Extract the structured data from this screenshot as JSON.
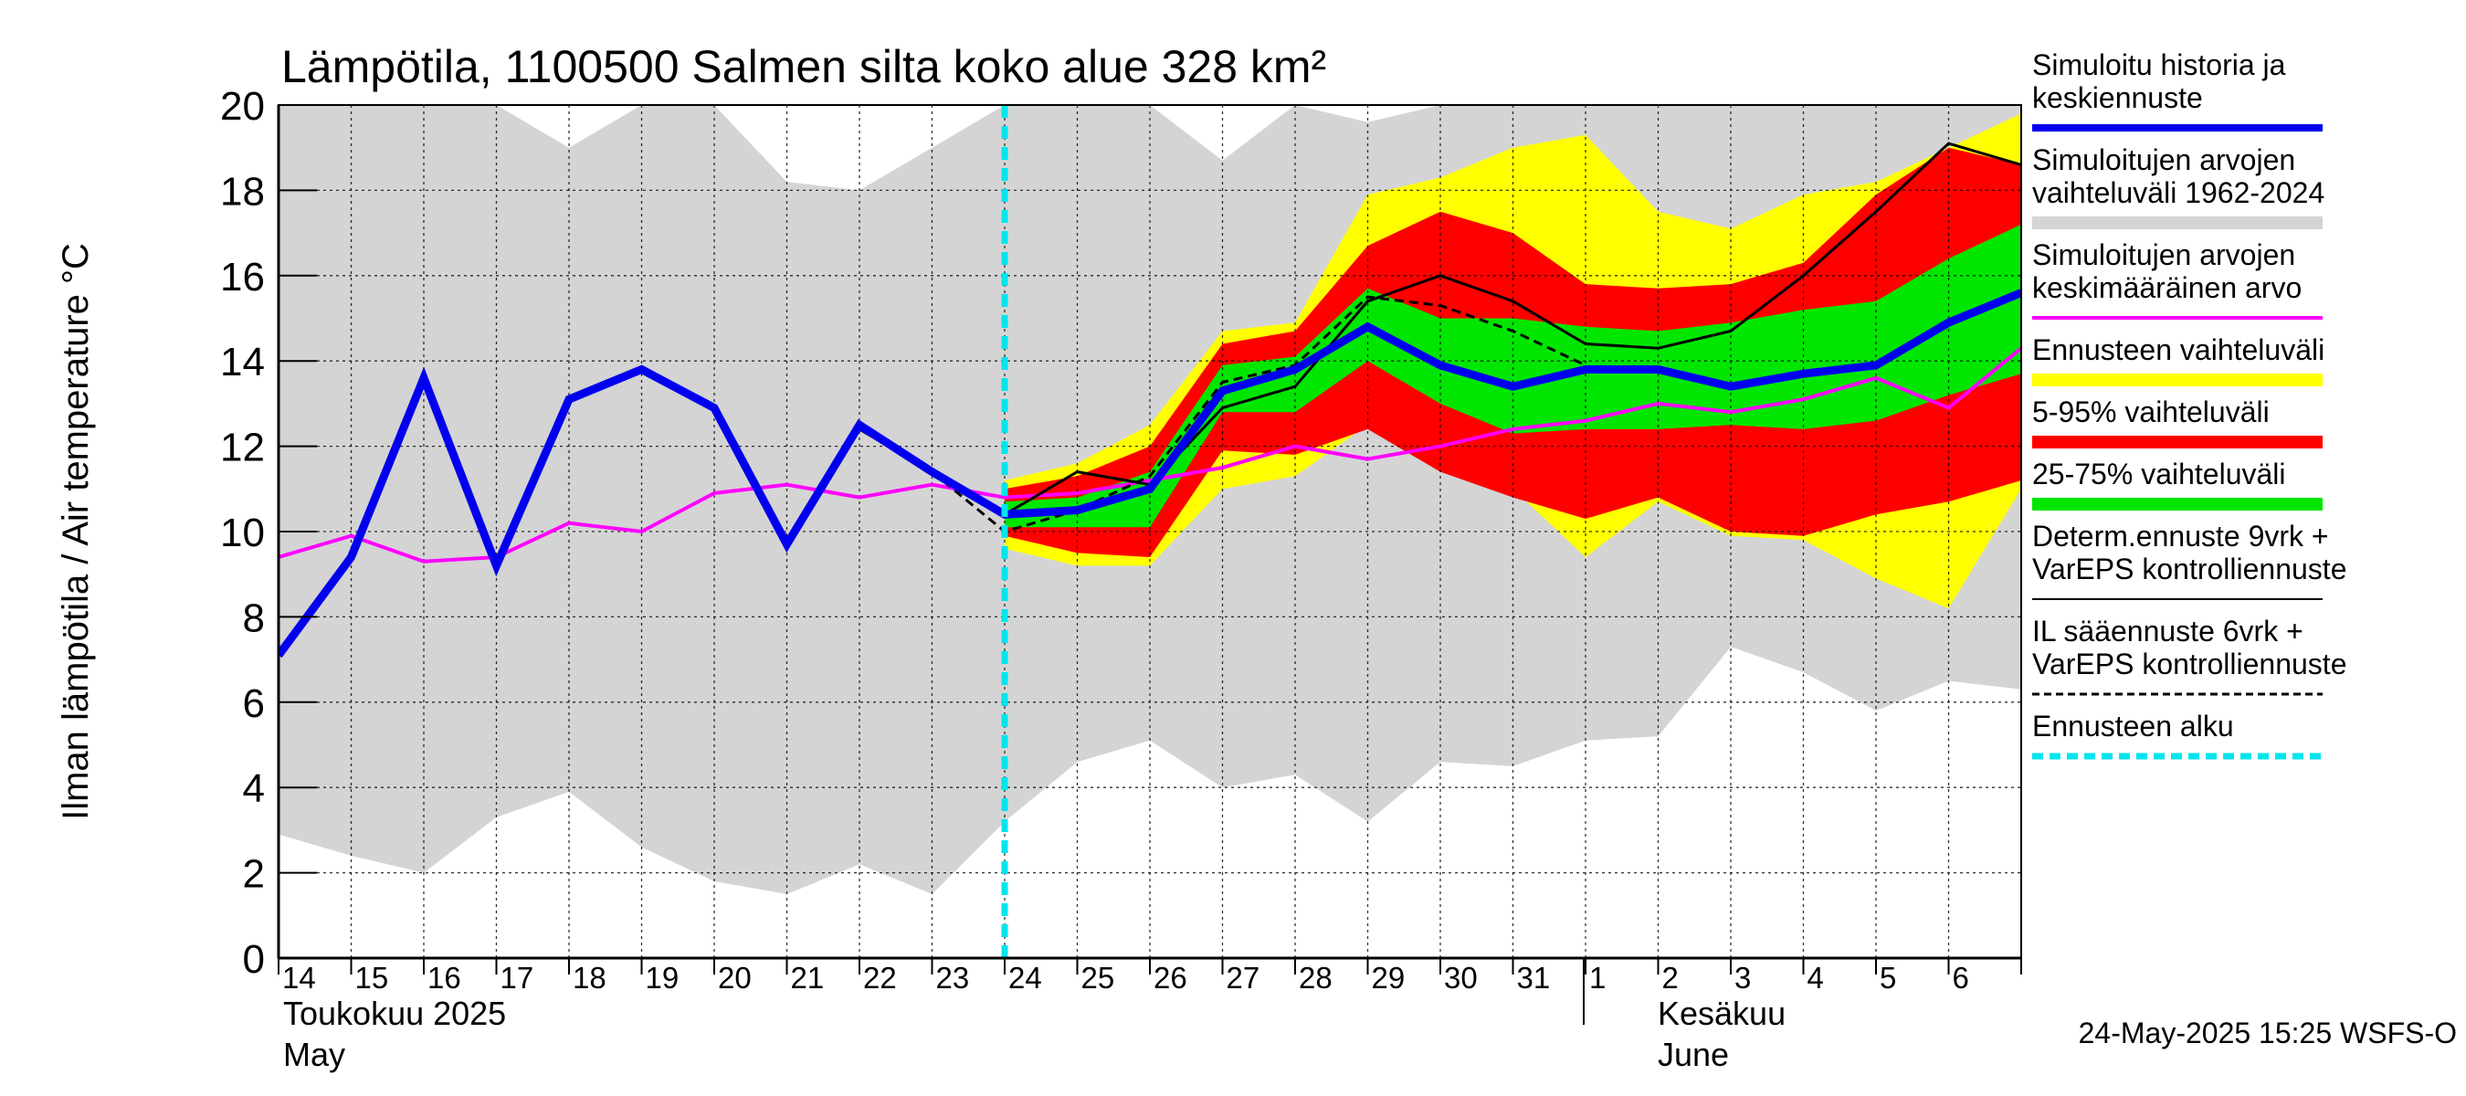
{
  "colors": {
    "history_band": "#d4d4d4",
    "forecast_range": "#ffff00",
    "p5_95": "#ff0000",
    "p25_75": "#00e600",
    "simulated": "#0000ee",
    "mean": "#ff00ff",
    "determ": "#000000",
    "il": "#000000",
    "forecast_start": "#00e5ee"
  },
  "chart_data": {
    "type": "line",
    "title": "Lämpötila, 1100500 Salmen silta koko alue 328 km²",
    "ylabel": "Ilman lämpötila / Air temperature   °C",
    "ylim": [
      0,
      20
    ],
    "yticks": [
      "0",
      "2",
      "4",
      "6",
      "8",
      "10",
      "12",
      "14",
      "16",
      "18",
      "20"
    ],
    "x_day_labels": [
      "14",
      "15",
      "16",
      "17",
      "18",
      "19",
      "20",
      "21",
      "22",
      "23",
      "24",
      "25",
      "26",
      "27",
      "28",
      "29",
      "30",
      "31",
      "1",
      "2",
      "3",
      "4",
      "5",
      "6"
    ],
    "month_labels": {
      "may_fi": "Toukokuu  2025",
      "may_en": "May",
      "june_fi": "Kesäkuu",
      "june_en": "June"
    },
    "forecast_start": "24.0",
    "timestamp": "24-May-2025 15:25 WSFS-O",
    "legend": [
      {
        "key": "simulated",
        "lines": [
          "Simuloitu historia ja",
          "keskiennuste"
        ]
      },
      {
        "key": "history_band",
        "lines": [
          "Simuloitujen arvojen",
          "vaihteluväli 1962-2024"
        ]
      },
      {
        "key": "mean",
        "lines": [
          "Simuloitujen arvojen",
          "keskimääräinen arvo"
        ]
      },
      {
        "key": "forecast_range",
        "lines": [
          "Ennusteen vaihteluväli"
        ]
      },
      {
        "key": "p5_95",
        "lines": [
          "5-95% vaihteluväli"
        ]
      },
      {
        "key": "p25_75",
        "lines": [
          "25-75% vaihteluväli"
        ]
      },
      {
        "key": "determ",
        "lines": [
          "Determ.ennuste 9vrk +",
          "VarEPS kontrolliennuste"
        ]
      },
      {
        "key": "il",
        "lines": [
          "IL sääennuste 6vrk  +",
          "  VarEPS kontrolliennuste"
        ]
      },
      {
        "key": "forecast_start",
        "lines": [
          "Ennusteen alku"
        ]
      }
    ],
    "history_band": {
      "x": [
        14,
        15,
        16,
        17,
        18,
        19,
        20,
        21,
        22,
        23,
        24,
        25,
        26,
        27,
        28,
        29,
        30,
        31,
        32,
        33,
        34,
        35,
        36,
        37,
        38.0
      ],
      "upper": [
        20,
        20,
        20,
        20,
        19,
        20,
        20,
        18.2,
        18,
        19,
        20,
        20,
        20,
        18.7,
        20,
        19.6,
        20,
        20,
        20,
        20,
        20,
        20,
        20,
        20,
        20
      ],
      "lower": [
        2.9,
        2.4,
        2.0,
        3.3,
        3.9,
        2.6,
        1.8,
        1.5,
        2.2,
        1.5,
        3.2,
        4.6,
        5.1,
        4.0,
        4.3,
        3.2,
        4.6,
        4.5,
        5.1,
        5.2,
        7.3,
        6.7,
        5.8,
        6.5,
        6.3
      ]
    },
    "forecast_range": {
      "x": [
        24,
        25,
        26,
        27,
        28,
        29,
        30,
        31,
        32,
        33,
        34,
        35,
        36,
        37,
        38.0
      ],
      "upper": [
        11.2,
        11.6,
        12.5,
        14.7,
        14.9,
        17.9,
        18.3,
        19.0,
        19.3,
        17.5,
        17.1,
        17.9,
        18.2,
        19.0,
        19.8
      ],
      "lower": [
        9.6,
        9.2,
        9.2,
        11.0,
        11.3,
        12.5,
        11.4,
        11.0,
        9.4,
        10.7,
        9.9,
        9.8,
        8.9,
        8.2,
        11.0
      ]
    },
    "p5_95": {
      "x": [
        24,
        25,
        26,
        27,
        28,
        29,
        30,
        31,
        32,
        33,
        34,
        35,
        36,
        37,
        38.0
      ],
      "upper": [
        11.0,
        11.3,
        12.0,
        14.4,
        14.7,
        16.7,
        17.5,
        17.0,
        15.8,
        15.7,
        15.8,
        16.3,
        17.9,
        19.0,
        18.6
      ],
      "lower": [
        9.9,
        9.5,
        9.4,
        11.9,
        11.8,
        12.4,
        11.4,
        10.8,
        10.3,
        10.8,
        10.0,
        9.9,
        10.4,
        10.7,
        11.2
      ]
    },
    "p25_75": {
      "x": [
        24,
        25,
        26,
        27,
        28,
        29,
        30,
        31,
        32,
        33,
        34,
        35,
        36,
        37,
        38.0
      ],
      "upper": [
        10.7,
        10.8,
        11.4,
        13.9,
        14.1,
        15.7,
        15.0,
        15.0,
        14.8,
        14.7,
        14.9,
        15.2,
        15.4,
        16.4,
        17.2
      ],
      "lower": [
        10.1,
        10.1,
        10.1,
        12.8,
        12.8,
        14.0,
        13.0,
        12.3,
        12.4,
        12.4,
        12.5,
        12.4,
        12.6,
        13.2,
        13.7
      ]
    },
    "series": [
      {
        "key": "mean",
        "x": [
          14,
          15,
          16,
          17,
          18,
          19,
          20,
          21,
          22,
          23,
          24,
          25,
          26,
          27,
          28,
          29,
          30,
          31,
          32,
          33,
          34,
          35,
          36,
          37,
          38.0
        ],
        "values": [
          9.4,
          9.9,
          9.3,
          9.4,
          10.2,
          10.0,
          10.9,
          11.1,
          10.8,
          11.1,
          10.8,
          10.9,
          11.2,
          11.5,
          12.0,
          11.7,
          12.0,
          12.4,
          12.6,
          13.0,
          12.8,
          13.1,
          13.6,
          12.9,
          14.3
        ]
      },
      {
        "key": "simulated",
        "x": [
          14,
          15,
          16,
          17,
          18,
          19,
          20,
          21,
          22,
          23,
          24,
          25,
          26,
          27,
          28,
          29,
          30,
          31,
          32,
          33,
          34,
          35,
          36,
          37,
          38.0
        ],
        "values": [
          7.1,
          9.4,
          13.6,
          9.2,
          13.1,
          13.8,
          12.9,
          9.7,
          12.5,
          11.4,
          10.4,
          10.5,
          11.0,
          13.3,
          13.8,
          14.8,
          13.9,
          13.4,
          13.8,
          13.8,
          13.4,
          13.7,
          13.9,
          14.9,
          15.6
        ]
      },
      {
        "key": "determ",
        "x": [
          22,
          23,
          24,
          25,
          26,
          27,
          28,
          29,
          30,
          31,
          32,
          33,
          34,
          35,
          36,
          37,
          38.0
        ],
        "values": [
          12.4,
          11.4,
          10.4,
          11.4,
          11.1,
          12.9,
          13.4,
          15.4,
          16.0,
          15.4,
          14.4,
          14.3,
          14.7,
          16.0,
          17.5,
          19.1,
          18.6
        ]
      },
      {
        "key": "il",
        "x": [
          23,
          24,
          25,
          26,
          27,
          28,
          29,
          30,
          31,
          32
        ],
        "values": [
          11.4,
          10.0,
          10.5,
          11.3,
          13.5,
          13.9,
          15.5,
          15.3,
          14.7,
          13.9
        ]
      }
    ]
  }
}
